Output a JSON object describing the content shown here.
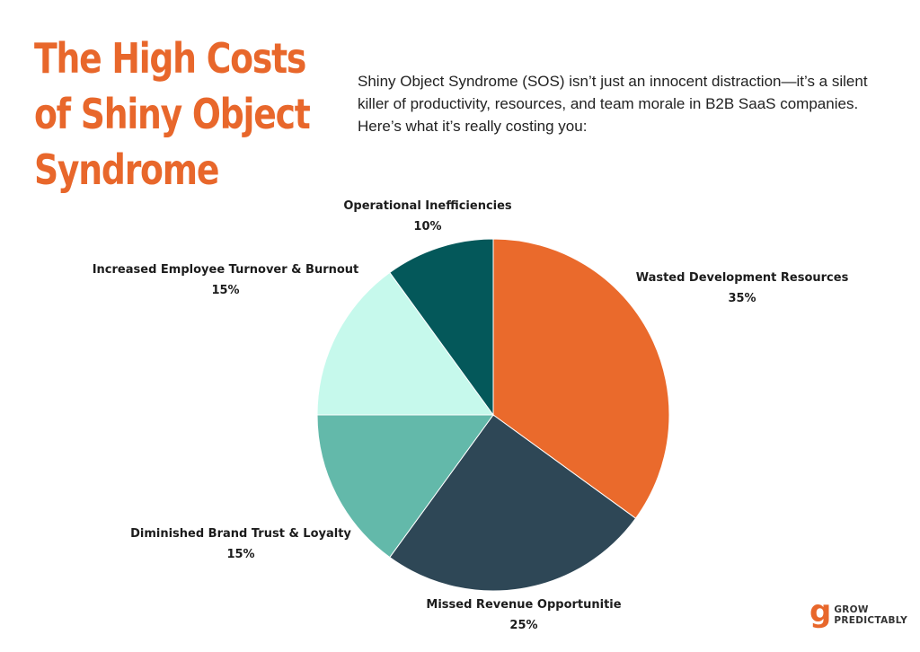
{
  "title_lines": [
    "The High Costs",
    "of Shiny Object",
    "Syndrome"
  ],
  "intro": "Shiny Object Syndrome (SOS) isn’t just an innocent distraction—it’s a silent killer of productivity, resources, and team morale in B2B SaaS companies. Here’s what it’s really costing you:",
  "logo": {
    "mark": "g",
    "line1": "GROW",
    "line2": "PREDICTABLY"
  },
  "colors": {
    "title": "#e8672b"
  },
  "chart_data": {
    "type": "pie",
    "title": "",
    "start": "top, clockwise",
    "slices": [
      {
        "label": "Wasted Development Resources",
        "value": 35,
        "value_label": "35%",
        "color": "#ea6a2c"
      },
      {
        "label": "Missed Revenue Opportunitie",
        "value": 25,
        "value_label": "25%",
        "color": "#2e4756"
      },
      {
        "label": "Diminished Brand Trust & Loyalty",
        "value": 15,
        "value_label": "15%",
        "color": "#63b9aa"
      },
      {
        "label": "Increased Employee Turnover & Burnout",
        "value": 15,
        "value_label": "15%",
        "color": "#c6f9ec"
      },
      {
        "label": "Operational Inefficiencies",
        "value": 10,
        "value_label": "10%",
        "color": "#04585a"
      }
    ]
  }
}
